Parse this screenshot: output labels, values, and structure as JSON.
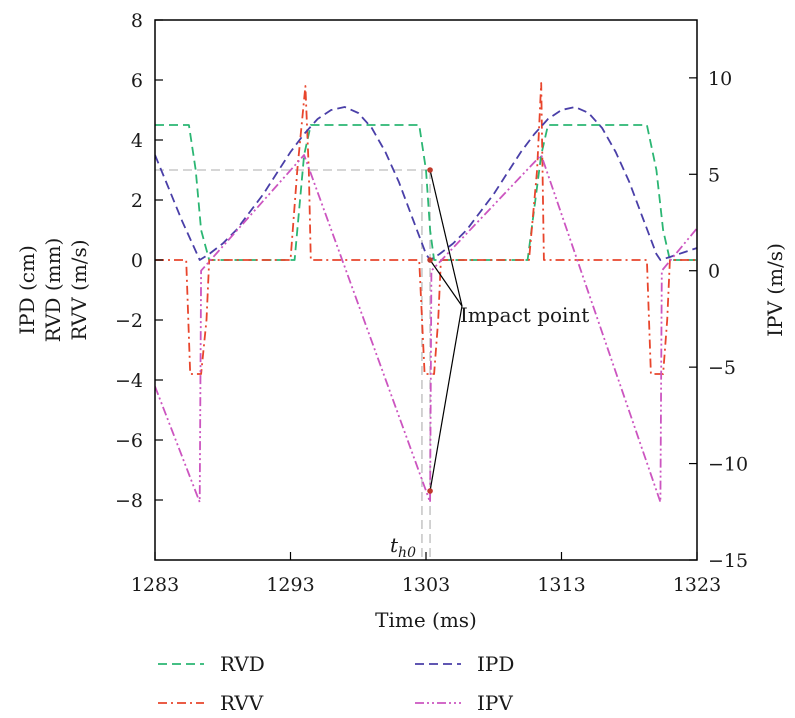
{
  "chart_data": {
    "type": "line",
    "xlabel": "Time (ms)",
    "ylabel_lines": [
      "IPD (cm)",
      "RVD (mm)",
      "RVV (m/s)"
    ],
    "y2label": "IPV (m/s)",
    "xlim": [
      1283,
      1323
    ],
    "ylim": [
      -10,
      8
    ],
    "y2lim": [
      -15,
      13
    ],
    "x_ticks": [
      1283,
      1293,
      1303,
      1313,
      1323
    ],
    "y_ticks": [
      8,
      6,
      4,
      2,
      0,
      -2,
      -4,
      -6,
      -8
    ],
    "y2_ticks": [
      10,
      5,
      0,
      -5,
      -10,
      -15
    ],
    "x_tick_labels": [
      "1283",
      "1293",
      "1303",
      "1313",
      "1323"
    ],
    "y_tick_labels": [
      "8",
      "6",
      "4",
      "2",
      "0",
      "−2",
      "−4",
      "−6",
      "−8"
    ],
    "y2_tick_labels": [
      "10",
      "5",
      "0",
      "−5",
      "−10",
      "−15"
    ],
    "series": [
      {
        "name": "RVD",
        "axis": "left",
        "color": "#2bb673",
        "dash": "dash",
        "x": [
          1283,
          1285.5,
          1286,
          1286.4,
          1287,
          1293.3,
          1294,
          1294.5,
          1302.5,
          1303.0,
          1303.3,
          1303.6,
          1305,
          1310.5,
          1311.5,
          1312,
          1319.3,
          1320,
          1320.5,
          1321,
          1323
        ],
        "y": [
          4.5,
          4.5,
          3.0,
          1.0,
          0,
          0,
          3.5,
          4.5,
          4.5,
          3.0,
          1.0,
          0,
          0,
          0,
          3.5,
          4.5,
          4.5,
          3.0,
          1.0,
          0,
          0
        ]
      },
      {
        "name": "RVV",
        "axis": "left",
        "color": "#e8452c",
        "dash": "dashdot",
        "x": [
          1283,
          1285.3,
          1285.6,
          1286.4,
          1286.8,
          1287,
          1293.0,
          1293.5,
          1294.1,
          1294.35,
          1294.5,
          1302.5,
          1302.9,
          1303.6,
          1303.9,
          1304.1,
          1310.6,
          1311.2,
          1311.5,
          1311.7,
          1319.3,
          1319.6,
          1320.5,
          1320.8,
          1321,
          1323
        ],
        "y": [
          0,
          0,
          -3.8,
          -3.8,
          -2,
          0,
          0,
          3,
          5.8,
          3,
          0,
          0,
          -3.8,
          -3.8,
          -2,
          0,
          0,
          3,
          5.9,
          0,
          0,
          -3.8,
          -3.8,
          -2,
          0,
          0
        ]
      },
      {
        "name": "IPD",
        "axis": "left",
        "color": "#4a3fa8",
        "dash": "dash",
        "x": [
          1283,
          1284,
          1285,
          1286,
          1286.3,
          1287,
          1288,
          1289,
          1290,
          1291,
          1292,
          1293,
          1294,
          1295,
          1296,
          1297,
          1298,
          1299,
          1300,
          1301,
          1302,
          1303,
          1303.3,
          1304,
          1305,
          1306,
          1307,
          1308,
          1309,
          1310,
          1311,
          1312,
          1313,
          1314,
          1315,
          1316,
          1317,
          1318,
          1319,
          1320,
          1320.3,
          1321,
          1322,
          1323
        ],
        "y": [
          3.5,
          2.4,
          1.3,
          0.3,
          0.0,
          0.2,
          0.55,
          1.0,
          1.6,
          2.2,
          2.9,
          3.6,
          4.2,
          4.7,
          5.0,
          5.1,
          4.9,
          4.4,
          3.6,
          2.6,
          1.4,
          0.2,
          0.0,
          0.2,
          0.55,
          1.0,
          1.6,
          2.2,
          2.9,
          3.6,
          4.2,
          4.7,
          5.0,
          5.1,
          4.9,
          4.4,
          3.6,
          2.6,
          1.4,
          0.2,
          0.0,
          0.1,
          0.25,
          0.4
        ]
      },
      {
        "name": "IPV",
        "axis": "right",
        "color": "#cc55c0",
        "dash": "dashdotdot",
        "x": [
          1283,
          1286.3,
          1286.4,
          1294.0,
          1303.3,
          1303.4,
          1311.5,
          1320.3,
          1320.4,
          1323
        ],
        "y": [
          -6,
          -12,
          0,
          6,
          -12,
          0,
          6,
          -12,
          0,
          2.2
        ]
      }
    ],
    "annotations": {
      "impact_label": "Impact point",
      "th0_label_base": "t",
      "th0_label_sub": "h0",
      "th0_x": 1302.7,
      "impact_x": 1303.3,
      "impact_upper_y": 3.0,
      "impact_zero_y": 0.0,
      "impact_lower_y": -7.7,
      "gray_level_y": 3.0
    },
    "legend": {
      "placement": "bottom",
      "entries": [
        {
          "name": "RVD",
          "label": "RVD",
          "color": "#2bb673",
          "dash": "dash"
        },
        {
          "name": "IPD",
          "label": "IPD",
          "color": "#4a3fa8",
          "dash": "dash"
        },
        {
          "name": "RVV",
          "label": "RVV",
          "color": "#e8452c",
          "dash": "dashdot"
        },
        {
          "name": "IPV",
          "label": "IPV",
          "color": "#cc55c0",
          "dash": "dashdotdot"
        }
      ]
    }
  }
}
